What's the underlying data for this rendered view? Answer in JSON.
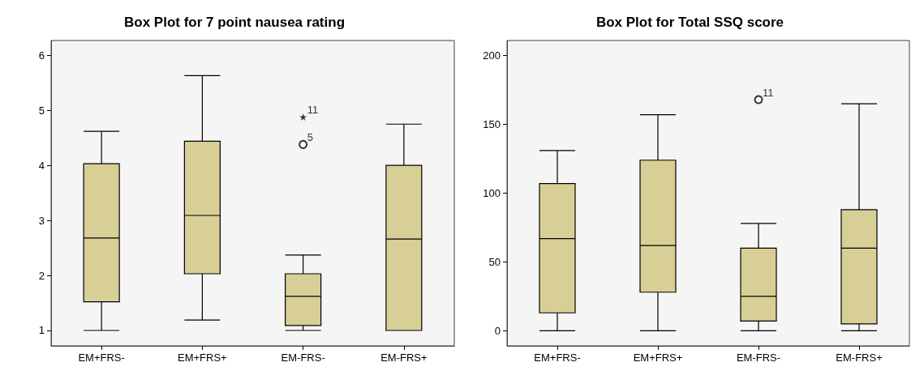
{
  "chart_data": [
    {
      "type": "box",
      "title": "Box Plot for 7 point nausea rating",
      "categories": [
        "EM+FRS-",
        "EM+FRS+",
        "EM-FRS-",
        "EM-FRS+"
      ],
      "ylim": [
        0.72,
        6.27
      ],
      "yticks": [
        1,
        2,
        3,
        4,
        5,
        6
      ],
      "grid": false,
      "series": [
        {
          "color": "#d8cf96",
          "boxes": [
            {
              "low": 1,
              "q1": 1.52,
              "median": 2.68,
              "q3": 4.03,
              "high": 4.62
            },
            {
              "low": 1.19,
              "q1": 2.03,
              "median": 3.09,
              "q3": 4.44,
              "high": 5.63
            },
            {
              "low": 1,
              "q1": 1.09,
              "median": 1.62,
              "q3": 2.03,
              "high": 2.37,
              "outliers": [
                4.38
              ]
            },
            {
              "low": 1,
              "q1": 1,
              "median": 2.66,
              "q3": 4.0,
              "high": 4.75
            }
          ]
        },
        {
          "type": "scatter",
          "marker": "star",
          "color": "#000000",
          "x": [
            "EM-FRS-"
          ],
          "values": [
            4.88
          ]
        }
      ],
      "annotations": [
        "11",
        "5"
      ]
    },
    {
      "type": "box",
      "title": "Box Plot for Total SSQ score",
      "categories": [
        "EM+FRS-",
        "EM+FRS+",
        "EM-FRS-",
        "EM-FRS+"
      ],
      "ylim": [
        -11,
        211
      ],
      "yticks": [
        0,
        50,
        100,
        150,
        200
      ],
      "grid": false,
      "series": [
        {
          "color": "#d8cf96",
          "boxes": [
            {
              "low": 0,
              "q1": 13,
              "median": 67,
              "q3": 107,
              "high": 131
            },
            {
              "low": 0,
              "q1": 28,
              "median": 62,
              "q3": 124,
              "high": 157
            },
            {
              "low": 0,
              "q1": 7,
              "median": 25,
              "q3": 60,
              "high": 78,
              "outliers": [
                168
              ]
            },
            {
              "low": 0,
              "q1": 5,
              "median": 60,
              "q3": 88,
              "high": 165
            }
          ]
        }
      ],
      "annotations": [
        "11"
      ]
    }
  ]
}
